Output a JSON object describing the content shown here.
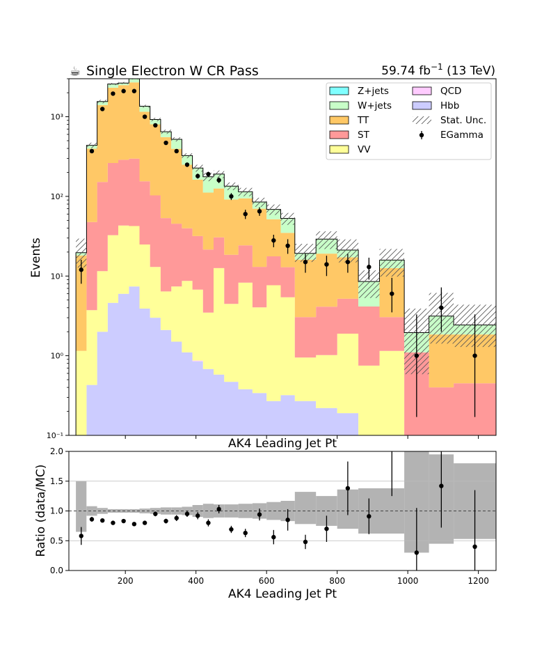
{
  "header": {
    "title_icon": "coffee-cup-icon",
    "title": "Single Electron W CR Pass",
    "lumi": "59.74 fb",
    "lumi_sup": "−1",
    "energy": " (13 TeV)"
  },
  "colors": {
    "Z+jets": "#80ffff",
    "W+jets": "#c8ffc8",
    "TT": "#ffc866",
    "ST": "#ff9999",
    "VV": "#ffff99",
    "QCD": "#ffccff",
    "Hbb": "#ccccff",
    "ratio_band": "#b3b3b3",
    "data": "#000000"
  },
  "chart_data": [
    {
      "type": "area",
      "subtype": "stacked-step-histogram",
      "xlabel": "AK4 Leading Jet Pt",
      "ylabel": "Events",
      "xlim": [
        40,
        1250
      ],
      "ylim": [
        0.1,
        3000
      ],
      "yscale": "log",
      "yticks": [
        "10⁻¹",
        "10⁰",
        "10¹",
        "10²",
        "10³"
      ],
      "xticks": [],
      "legend_position": "top-right",
      "legend": [
        "Z+jets",
        "W+jets",
        "TT",
        "ST",
        "VV",
        "QCD",
        "Hbb",
        "Stat. Unc.",
        "EGamma"
      ],
      "bin_edges": [
        60,
        90,
        120,
        150,
        180,
        210,
        240,
        270,
        300,
        330,
        360,
        390,
        420,
        450,
        480,
        520,
        560,
        600,
        640,
        680,
        740,
        800,
        860,
        920,
        990,
        1060,
        1130,
        1250
      ],
      "stack": [
        {
          "name": "Hbb",
          "values": [
            0.05,
            0.43,
            2.0,
            4.6,
            6.0,
            7.4,
            3.9,
            3.0,
            2.1,
            1.5,
            1.1,
            0.85,
            0.68,
            0.58,
            0.47,
            0.38,
            0.34,
            0.27,
            0.32,
            0.27,
            0.22,
            0.19,
            0.05,
            0.05,
            0.05,
            0.05,
            0.05
          ]
        },
        {
          "name": "QCD",
          "values": [
            0,
            0,
            0,
            0,
            0,
            0,
            0,
            0,
            0,
            0,
            0,
            0.02,
            0,
            0,
            0,
            0,
            0,
            0,
            0,
            0,
            0,
            0,
            0,
            0,
            0,
            0,
            0
          ]
        },
        {
          "name": "VV",
          "values": [
            1.1,
            3.3,
            9.5,
            28,
            37,
            35,
            21,
            10,
            4.3,
            5.9,
            7.6,
            5.9,
            2.8,
            12,
            4.0,
            7.9,
            3.7,
            7.4,
            5.1,
            0.68,
            0.8,
            1.7,
            0.7,
            1.1,
            0.05,
            0.05,
            0.05
          ]
        },
        {
          "name": "ST",
          "values": [
            0,
            44,
            140,
            230,
            245,
            255,
            130,
            90,
            47,
            38,
            31,
            25,
            18,
            18,
            14,
            16,
            9.0,
            10,
            7.5,
            2.1,
            3.1,
            3.3,
            3.4,
            1.9,
            1.0,
            0.3,
            0.35
          ]
        },
        {
          "name": "TT",
          "values": [
            17,
            350,
            1250,
            2050,
            2200,
            2400,
            1000,
            700,
            500,
            350,
            210,
            130,
            90,
            95,
            73,
            70,
            57,
            34,
            22,
            13,
            15,
            12,
            0,
            9.5,
            0,
            1.45,
            1.4
          ]
        },
        {
          "name": "W+jets",
          "values": [
            1.5,
            40,
            150,
            260,
            160,
            350,
            200,
            120,
            95,
            125,
            75,
            65,
            65,
            65,
            43,
            20,
            15,
            17,
            18,
            3.2,
            10,
            4,
            4.4,
            3.3,
            0.85,
            1.3,
            0.58
          ]
        },
        {
          "name": "Z+jets",
          "values": [
            0,
            0,
            0,
            0,
            0,
            0,
            0,
            0,
            0,
            0,
            0,
            0,
            0,
            0,
            0,
            0,
            0,
            0,
            0,
            0,
            0,
            0,
            0,
            0,
            0,
            0,
            0
          ]
        }
      ],
      "data_series": {
        "name": "EGamma",
        "x": [
          75,
          105,
          135,
          165,
          195,
          225,
          255,
          285,
          315,
          345,
          375,
          405,
          435,
          465,
          500,
          540,
          580,
          620,
          660,
          710,
          770,
          830,
          890,
          955,
          1025,
          1095,
          1190
        ],
        "y": [
          12,
          370,
          1250,
          1950,
          2100,
          2100,
          1000,
          780,
          470,
          370,
          250,
          180,
          190,
          160,
          100,
          60,
          65,
          28,
          24,
          15,
          14,
          15,
          13,
          6,
          1,
          4,
          1
        ],
        "yerr_low": [
          4,
          20,
          35,
          45,
          45,
          45,
          32,
          28,
          22,
          19,
          16,
          13,
          14,
          13,
          10,
          8,
          8,
          5,
          5,
          4,
          4,
          4,
          4,
          2.5,
          0.83,
          2,
          0.83
        ],
        "yerr_high": [
          4,
          20,
          35,
          45,
          45,
          45,
          32,
          28,
          22,
          19,
          16,
          13,
          14,
          13,
          10,
          8,
          8,
          5,
          5,
          4,
          4,
          4,
          4,
          3.5,
          2.3,
          3.2,
          2.3
        ]
      }
    },
    {
      "type": "scatter",
      "subtype": "ratio-with-error-band",
      "xlabel": "AK4 Leading Jet Pt",
      "ylabel": "Ratio (data/MC)",
      "xlim": [
        40,
        1250
      ],
      "ylim": [
        0.0,
        2.0
      ],
      "xticks": [
        200,
        400,
        600,
        800,
        1000,
        1200
      ],
      "yticks": [
        "0.0",
        "0.5",
        "1.0",
        "1.5",
        "2.0"
      ],
      "grid": true,
      "unc_band": {
        "low": [
          0.65,
          0.92,
          0.95,
          0.97,
          0.97,
          0.97,
          0.96,
          0.95,
          0.94,
          0.94,
          0.93,
          0.9,
          0.88,
          0.89,
          0.89,
          0.88,
          0.87,
          0.85,
          0.83,
          0.78,
          0.75,
          0.7,
          0.62,
          0.62,
          0.3,
          0.45,
          0.6
        ],
        "high": [
          1.5,
          1.08,
          1.05,
          1.03,
          1.03,
          1.03,
          1.04,
          1.05,
          1.06,
          1.06,
          1.07,
          1.1,
          1.12,
          1.11,
          1.11,
          1.12,
          1.13,
          1.15,
          1.17,
          1.32,
          1.25,
          1.36,
          1.38,
          1.38,
          2.0,
          1.95,
          1.4
        ]
      },
      "unc_band_last": {
        "low": 0.53,
        "high": 1.8
      },
      "points": {
        "x": [
          75,
          105,
          135,
          165,
          195,
          225,
          255,
          285,
          315,
          345,
          375,
          405,
          435,
          465,
          500,
          540,
          580,
          620,
          660,
          710,
          770,
          830,
          890,
          955,
          1025,
          1095,
          1190
        ],
        "y": [
          0.58,
          0.86,
          0.84,
          0.8,
          0.83,
          0.78,
          0.8,
          0.95,
          0.83,
          0.88,
          0.95,
          0.92,
          0.8,
          1.03,
          0.69,
          0.63,
          0.94,
          0.56,
          0.85,
          0.48,
          0.7,
          1.38,
          0.91,
          2.0,
          0.3,
          1.42,
          0.4
        ],
        "yerr": [
          0.15,
          0.04,
          0.03,
          0.03,
          0.03,
          0.03,
          0.03,
          0.04,
          0.04,
          0.05,
          0.05,
          0.06,
          0.06,
          0.07,
          0.06,
          0.07,
          0.1,
          0.12,
          0.18,
          0.12,
          0.22,
          0.45,
          0.3,
          0.75,
          0.75,
          0.7,
          0.95
        ]
      }
    }
  ]
}
